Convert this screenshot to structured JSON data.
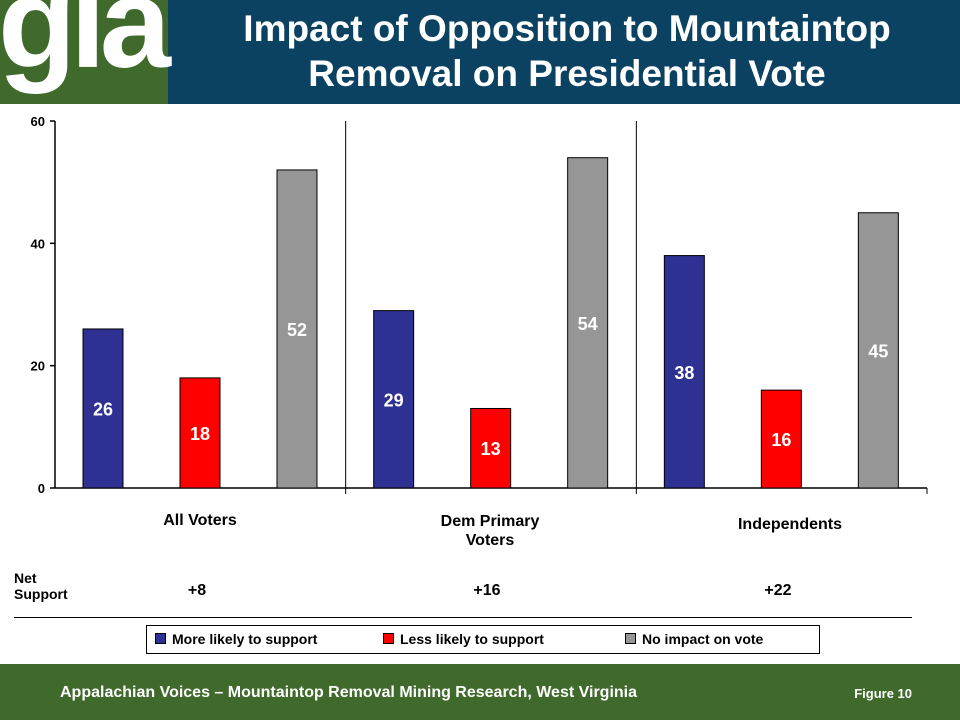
{
  "header": {
    "logo_text": "gla",
    "title_line1": "Impact of Opposition to Mountaintop",
    "title_line2": "Removal on Presidential Vote"
  },
  "colors": {
    "header_bg": "#0b4262",
    "logo_bg": "#3f6a2b",
    "footer_bg": "#3f6a2b",
    "more_likely": "#2e3192",
    "less_likely": "#ff0000",
    "no_impact": "#969696"
  },
  "chart_data": {
    "type": "bar",
    "categories": [
      "All Voters",
      "Dem Primary Voters",
      "Independents"
    ],
    "series": [
      {
        "name": "More likely to support",
        "values": [
          26,
          29,
          38
        ]
      },
      {
        "name": "Less likely to support",
        "values": [
          18,
          13,
          16
        ]
      },
      {
        "name": "No impact on vote",
        "values": [
          52,
          54,
          45
        ]
      }
    ],
    "ylim": [
      0,
      60
    ],
    "yticks": [
      0,
      20,
      40,
      60
    ],
    "grid": false,
    "legend_placement": "bottom"
  },
  "groups": [
    {
      "label_line1": "All Voters",
      "label_line2": ""
    },
    {
      "label_line1": "Dem Primary",
      "label_line2": "Voters"
    },
    {
      "label_line1": "Independents",
      "label_line2": ""
    }
  ],
  "net_support": {
    "label_line1": "Net",
    "label_line2": "Support",
    "values": [
      "+8",
      "+16",
      "+22"
    ]
  },
  "footer": {
    "text": "Appalachian Voices – Mountaintop Removal Mining Research, West Virginia",
    "figure": "Figure 10"
  }
}
